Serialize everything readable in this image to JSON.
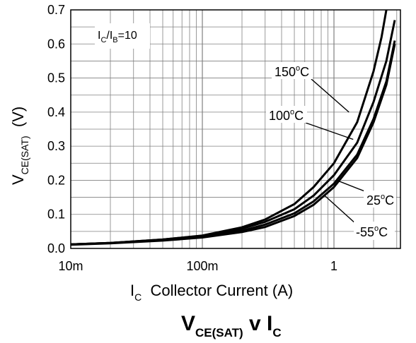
{
  "chart_data": {
    "type": "line",
    "title_main": "V",
    "title_sub": "CE(SAT)",
    "title_mid": " v I",
    "title_sub2": "C",
    "xlabel_main": "I",
    "xlabel_sub": "C",
    "xlabel_rest": "  Collector Current (A)",
    "ylabel_main": "V",
    "ylabel_sub": "CE(SAT)",
    "ylabel_rest": "  (V)",
    "x_scale": "log",
    "xlim": [
      0.01,
      3.2
    ],
    "ylim": [
      0,
      0.7
    ],
    "grid": true,
    "x_tick_values": [
      0.01,
      0.1,
      1
    ],
    "x_tick_labels": [
      "10m",
      "100m",
      "1"
    ],
    "y_tick_values": [
      0,
      0.1,
      0.2,
      0.3,
      0.4,
      0.5,
      0.6,
      0.7
    ],
    "y_tick_labels": [
      "0.0",
      "0.1",
      "0.2",
      "0.3",
      "0.4",
      "0.5",
      "0.6",
      "0.7"
    ],
    "condition": {
      "a": "I",
      "a_sub": "C",
      "slash": "/I",
      "b_sub": "B",
      "rest": "=10"
    },
    "series": [
      {
        "name": "150°C",
        "x": [
          0.01,
          0.02,
          0.05,
          0.1,
          0.2,
          0.3,
          0.5,
          0.7,
          1.0,
          1.5,
          2.0,
          2.3,
          2.5
        ],
        "y": [
          0.012,
          0.016,
          0.026,
          0.038,
          0.062,
          0.085,
          0.13,
          0.18,
          0.25,
          0.37,
          0.52,
          0.62,
          0.7
        ]
      },
      {
        "name": "100°C",
        "x": [
          0.01,
          0.02,
          0.05,
          0.1,
          0.2,
          0.3,
          0.5,
          0.7,
          1.0,
          1.5,
          2.0,
          2.5,
          2.9
        ],
        "y": [
          0.012,
          0.016,
          0.026,
          0.037,
          0.058,
          0.078,
          0.115,
          0.155,
          0.215,
          0.31,
          0.43,
          0.55,
          0.67
        ]
      },
      {
        "name": "25°C",
        "x": [
          0.01,
          0.02,
          0.05,
          0.1,
          0.2,
          0.3,
          0.5,
          0.7,
          1.0,
          1.5,
          2.0,
          2.5,
          2.9
        ],
        "y": [
          0.012,
          0.016,
          0.025,
          0.035,
          0.052,
          0.07,
          0.103,
          0.138,
          0.19,
          0.275,
          0.38,
          0.49,
          0.61
        ]
      },
      {
        "name": "-55°C",
        "x": [
          0.01,
          0.02,
          0.05,
          0.1,
          0.2,
          0.3,
          0.5,
          0.7,
          1.0,
          1.5,
          2.0,
          2.5,
          2.9
        ],
        "y": [
          0.011,
          0.015,
          0.023,
          0.032,
          0.048,
          0.063,
          0.095,
          0.128,
          0.18,
          0.265,
          0.37,
          0.48,
          0.6
        ]
      }
    ],
    "series_labels": [
      {
        "main": "150",
        "deg": "o",
        "unit": "C"
      },
      {
        "main": "100",
        "deg": "o",
        "unit": "C"
      },
      {
        "main": "25",
        "deg": "o",
        "unit": "C"
      },
      {
        "main": "-55",
        "deg": "o",
        "unit": "C"
      }
    ],
    "line_color": "#000000",
    "grid_color": "#808080"
  }
}
